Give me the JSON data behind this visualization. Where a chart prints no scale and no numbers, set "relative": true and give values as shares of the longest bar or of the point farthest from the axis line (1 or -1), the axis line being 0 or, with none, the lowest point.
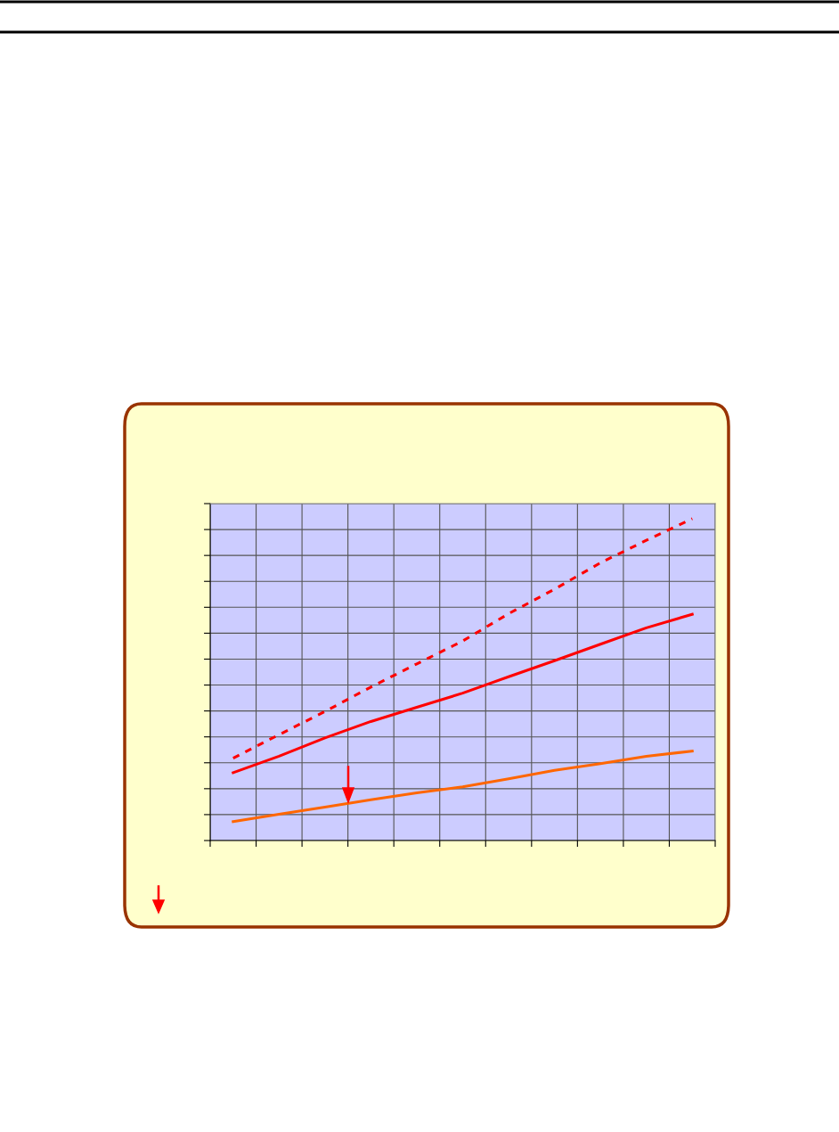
{
  "chart_data": {
    "type": "line",
    "relative": true,
    "tick_labels": false,
    "grid": true,
    "legend": false,
    "marker": "none",
    "categories": [
      null,
      null,
      null,
      null,
      null,
      null,
      null,
      null,
      null,
      null,
      null
    ],
    "series": [
      {
        "color": "#ff0000",
        "line_style": "dashed",
        "values": [
          0.256,
          0.329,
          0.401,
          0.477,
          0.549,
          0.62,
          0.705,
          0.781,
          0.863,
          0.933,
          1
        ]
      },
      {
        "color": "#ff0000",
        "line_style": "solid",
        "values": [
          0.211,
          0.262,
          0.319,
          0.37,
          0.414,
          0.458,
          0.509,
          0.559,
          0.61,
          0.661,
          0.703
        ]
      },
      {
        "color": "#ff6600",
        "line_style": "solid",
        "values": [
          0.059,
          0.082,
          0.104,
          0.127,
          0.148,
          0.167,
          0.192,
          0.218,
          0.239,
          0.262,
          0.278
        ]
      }
    ]
  }
}
